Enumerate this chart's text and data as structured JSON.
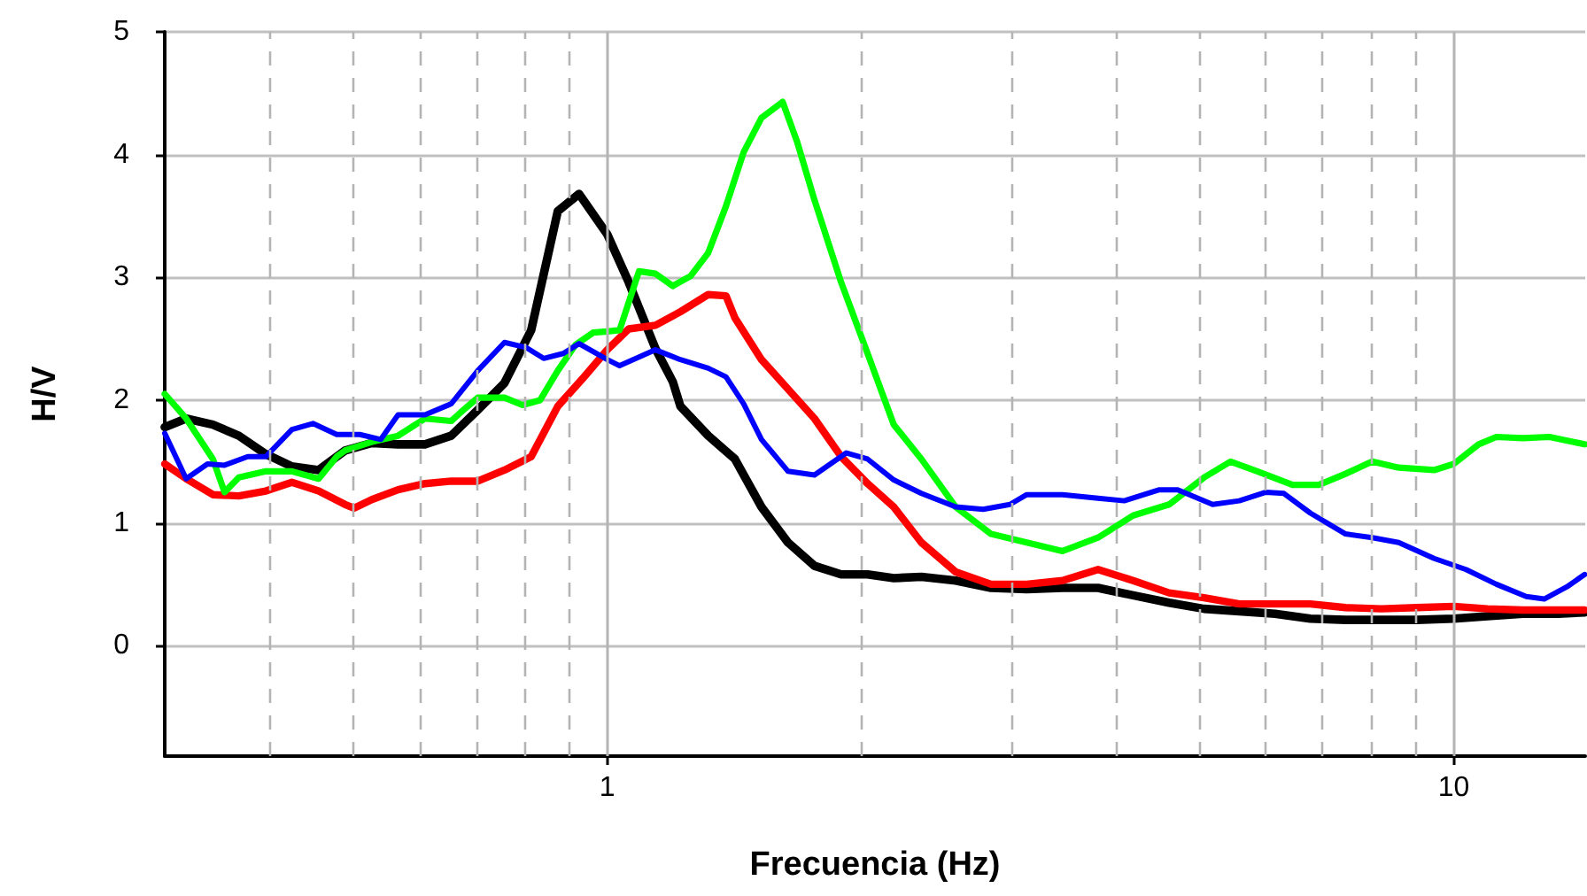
{
  "chart_data": {
    "type": "line",
    "xlabel": "Frecuencia (Hz)",
    "ylabel": "H/V",
    "log": "x",
    "grid": true,
    "marker": "none",
    "line_style": "solid",
    "xlim": [
      0.3,
      14.3
    ],
    "ylim": [
      -0.9,
      5
    ],
    "xticks": [
      {
        "value": 0.4,
        "label": null
      },
      {
        "value": 0.5,
        "label": null
      },
      {
        "value": 0.6,
        "label": null
      },
      {
        "value": 0.7,
        "label": null
      },
      {
        "value": 0.8,
        "label": null
      },
      {
        "value": 0.9,
        "label": null
      },
      1,
      {
        "value": 2,
        "label": null
      },
      {
        "value": 3,
        "label": null
      },
      {
        "value": 4,
        "label": null
      },
      {
        "value": 5,
        "label": null
      },
      {
        "value": 6,
        "label": null
      },
      {
        "value": 7,
        "label": null
      },
      {
        "value": 8,
        "label": null
      },
      {
        "value": 9,
        "label": null
      },
      10
    ],
    "yticks": [
      0,
      1,
      2,
      3,
      4,
      5
    ],
    "series": [
      {
        "color": "#000000",
        "x": [
          0.3,
          0.318,
          0.342,
          0.367,
          0.395,
          0.424,
          0.456,
          0.49,
          0.527,
          0.566,
          0.609,
          0.654,
          0.703,
          0.756,
          0.813,
          0.874,
          0.926,
          1.0,
          1.06,
          1.14,
          1.195,
          1.22,
          1.316,
          1.415,
          1.521,
          1.635,
          1.757,
          1.889,
          2.03,
          2.18,
          2.35,
          2.58,
          2.84,
          3.13,
          3.45,
          3.8,
          4.18,
          4.61,
          5.07,
          5.58,
          6.15,
          6.77,
          7.45,
          8.21,
          9.04,
          10.0,
          10.96,
          12.07,
          13.29,
          14.28
        ],
        "values": [
          1.78,
          1.85,
          1.8,
          1.71,
          1.56,
          1.46,
          1.43,
          1.59,
          1.65,
          1.64,
          1.64,
          1.71,
          1.92,
          2.14,
          2.57,
          3.54,
          3.68,
          3.35,
          2.96,
          2.42,
          2.15,
          1.95,
          1.71,
          1.52,
          1.13,
          0.84,
          0.65,
          0.58,
          0.58,
          0.55,
          0.56,
          0.53,
          0.47,
          0.46,
          0.47,
          0.47,
          0.41,
          0.35,
          0.3,
          0.28,
          0.26,
          0.22,
          0.21,
          0.21,
          0.21,
          0.22,
          0.24,
          0.26,
          0.26,
          0.27
        ]
      },
      {
        "color": "#ff0000",
        "x": [
          0.3,
          0.318,
          0.342,
          0.367,
          0.395,
          0.424,
          0.456,
          0.49,
          0.502,
          0.527,
          0.566,
          0.609,
          0.654,
          0.703,
          0.756,
          0.813,
          0.874,
          0.939,
          1.0,
          1.06,
          1.14,
          1.22,
          1.316,
          1.381,
          1.415,
          1.521,
          1.635,
          1.757,
          1.889,
          2.03,
          2.18,
          2.35,
          2.58,
          2.84,
          3.13,
          3.45,
          3.8,
          4.18,
          4.61,
          5.07,
          5.58,
          6.15,
          6.77,
          7.45,
          8.21,
          9.04,
          10.0,
          10.96,
          12.07,
          14.28
        ],
        "values": [
          1.48,
          1.36,
          1.23,
          1.22,
          1.26,
          1.33,
          1.26,
          1.15,
          1.12,
          1.19,
          1.27,
          1.32,
          1.34,
          1.34,
          1.43,
          1.54,
          1.95,
          2.19,
          2.41,
          2.58,
          2.61,
          2.72,
          2.86,
          2.85,
          2.67,
          2.33,
          2.09,
          1.85,
          1.54,
          1.32,
          1.13,
          0.84,
          0.6,
          0.5,
          0.5,
          0.53,
          0.62,
          0.53,
          0.43,
          0.39,
          0.34,
          0.34,
          0.34,
          0.31,
          0.3,
          0.31,
          0.32,
          0.3,
          0.29,
          0.29
        ]
      },
      {
        "color": "#00ff00",
        "x": [
          0.3,
          0.318,
          0.342,
          0.353,
          0.367,
          0.395,
          0.424,
          0.456,
          0.479,
          0.49,
          0.527,
          0.566,
          0.609,
          0.654,
          0.671,
          0.703,
          0.756,
          0.794,
          0.833,
          0.874,
          0.917,
          0.962,
          1.0,
          1.034,
          1.09,
          1.14,
          1.195,
          1.254,
          1.316,
          1.381,
          1.449,
          1.521,
          1.611,
          1.675,
          1.757,
          1.889,
          2.03,
          2.18,
          2.35,
          2.58,
          2.84,
          3.13,
          3.45,
          3.8,
          4.18,
          4.61,
          5.07,
          5.45,
          5.86,
          6.45,
          6.93,
          7.45,
          8.01,
          8.61,
          9.48,
          10.0,
          10.7,
          11.23,
          12.07,
          12.97,
          14.28
        ],
        "values": [
          2.05,
          1.85,
          1.52,
          1.25,
          1.37,
          1.42,
          1.42,
          1.36,
          1.54,
          1.59,
          1.66,
          1.71,
          1.85,
          1.83,
          1.9,
          2.02,
          2.02,
          1.96,
          2.0,
          2.24,
          2.45,
          2.55,
          2.56,
          2.57,
          3.05,
          3.03,
          2.93,
          3.01,
          3.2,
          3.58,
          4.02,
          4.3,
          4.43,
          4.11,
          3.63,
          2.96,
          2.38,
          1.8,
          1.52,
          1.13,
          0.91,
          0.84,
          0.77,
          0.88,
          1.06,
          1.15,
          1.37,
          1.5,
          1.42,
          1.31,
          1.31,
          1.4,
          1.5,
          1.45,
          1.43,
          1.48,
          1.64,
          1.7,
          1.69,
          1.7,
          1.64
        ]
      },
      {
        "color": "#0000ff",
        "x": [
          0.3,
          0.318,
          0.337,
          0.353,
          0.376,
          0.395,
          0.424,
          0.449,
          0.479,
          0.51,
          0.54,
          0.566,
          0.609,
          0.654,
          0.703,
          0.756,
          0.801,
          0.841,
          0.887,
          0.926,
          1.0,
          1.034,
          1.14,
          1.22,
          1.316,
          1.381,
          1.449,
          1.521,
          1.635,
          1.757,
          1.916,
          2.03,
          2.18,
          2.35,
          2.58,
          2.78,
          2.99,
          3.13,
          3.45,
          3.8,
          4.08,
          4.49,
          4.72,
          5.19,
          5.58,
          6.0,
          6.3,
          6.77,
          7.45,
          8.01,
          8.61,
          9.48,
          10.34,
          11.23,
          12.18,
          12.79,
          13.61,
          14.28
        ],
        "values": [
          1.73,
          1.36,
          1.48,
          1.47,
          1.54,
          1.54,
          1.76,
          1.81,
          1.72,
          1.72,
          1.68,
          1.88,
          1.88,
          1.97,
          2.24,
          2.47,
          2.43,
          2.34,
          2.38,
          2.46,
          2.33,
          2.28,
          2.41,
          2.33,
          2.26,
          2.19,
          1.97,
          1.68,
          1.42,
          1.39,
          1.57,
          1.52,
          1.35,
          1.24,
          1.13,
          1.11,
          1.15,
          1.23,
          1.23,
          1.2,
          1.18,
          1.27,
          1.27,
          1.15,
          1.18,
          1.25,
          1.24,
          1.08,
          0.91,
          0.88,
          0.84,
          0.71,
          0.62,
          0.5,
          0.4,
          0.38,
          0.48,
          0.58
        ]
      }
    ]
  }
}
